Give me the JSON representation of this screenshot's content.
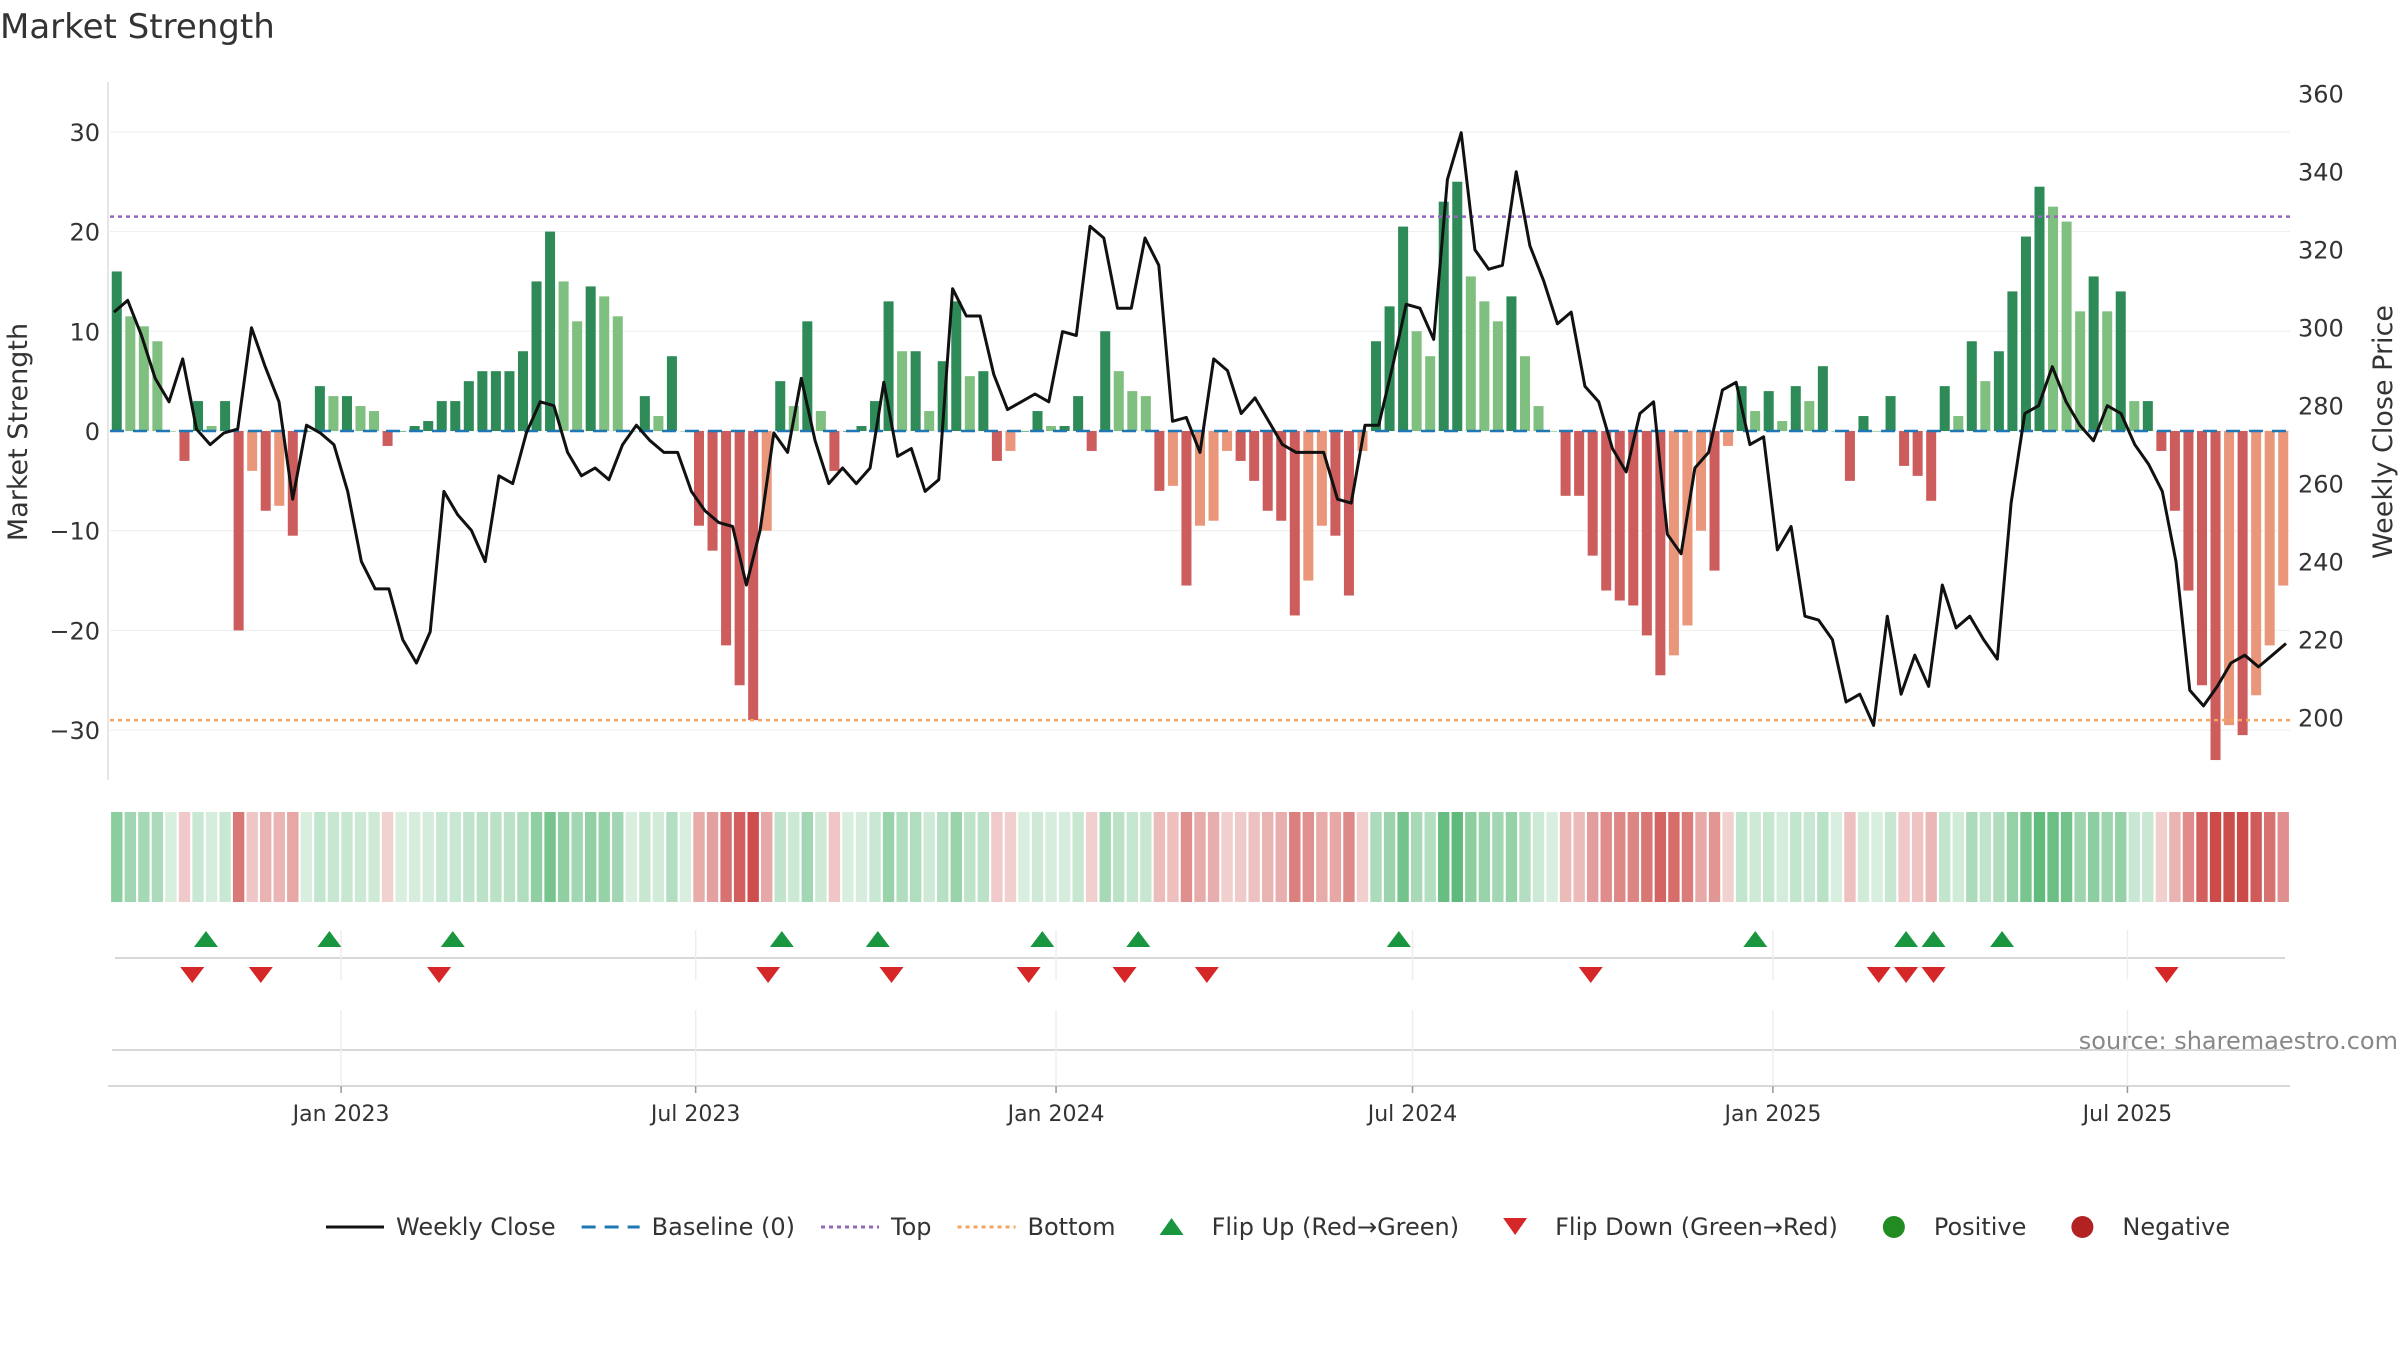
{
  "chart_data": {
    "type": "bar",
    "title": "Market Strength",
    "source": "source: sharemaestro.com",
    "ylabel_left": "Market Strength",
    "ylabel_right": "Weekly Close Price",
    "ylim_left": [
      -35,
      35
    ],
    "ylim_right": [
      184,
      363
    ],
    "yticks_left": [
      30,
      20,
      10,
      0,
      -10,
      -20,
      -30
    ],
    "yticks_right": [
      360,
      340,
      320,
      300,
      280,
      260,
      240,
      220,
      200
    ],
    "top_line": 21.5,
    "bottom_line": -29,
    "start_date": "2022-09-05",
    "end_date": "2025-09-22",
    "x_ticks": [
      {
        "date": "2023-01-01",
        "label": "Jan 2023"
      },
      {
        "date": "2023-07-01",
        "label": "Jul 2023"
      },
      {
        "date": "2024-01-01",
        "label": "Jan 2024"
      },
      {
        "date": "2024-07-01",
        "label": "Jul 2024"
      },
      {
        "date": "2025-01-01",
        "label": "Jan 2025"
      },
      {
        "date": "2025-07-01",
        "label": "Jul 2025"
      }
    ],
    "strength": [
      16,
      11.5,
      10.5,
      9,
      0,
      -3,
      3,
      0.5,
      3,
      -20,
      -4,
      -8,
      -7.5,
      -10.5,
      0,
      4.5,
      3.5,
      3.5,
      2.5,
      2,
      -1.5,
      0,
      0.5,
      1,
      3,
      3,
      5,
      6,
      6,
      6,
      8,
      15,
      20,
      15,
      11,
      14.5,
      13.5,
      11.5,
      0,
      3.5,
      1.5,
      7.5,
      0,
      -9.5,
      -12,
      -21.5,
      -25.5,
      -29,
      -10,
      5,
      2.5,
      11,
      2,
      -4,
      0,
      0.5,
      3,
      13,
      8,
      8,
      2,
      7,
      13,
      5.5,
      6,
      -3,
      -2,
      0,
      2,
      0.5,
      0.5,
      3.5,
      -2,
      10,
      6,
      4,
      3.5,
      -6,
      -5.5,
      -15.5,
      -9.5,
      -9,
      -2,
      -3,
      -5,
      -8,
      -9,
      -18.5,
      -15,
      -9.5,
      -10.5,
      -16.5,
      -2,
      9,
      12.5,
      20.5,
      10,
      7.5,
      23,
      25,
      15.5,
      13,
      11,
      13.5,
      7.5,
      2.5,
      0,
      -6.5,
      -6.5,
      -12.5,
      -16,
      -17,
      -17.5,
      -20.5,
      -24.5,
      -22.5,
      -19.5,
      -10,
      -14,
      -1.5,
      4.5,
      2,
      4,
      1,
      4.5,
      3,
      6.5,
      0,
      -5,
      1.5,
      0,
      3.5,
      -3.5,
      -4.5,
      -7,
      4.5,
      1.5,
      9,
      5,
      8,
      14,
      19.5,
      24.5,
      22.5,
      21,
      12,
      15.5,
      12,
      14,
      3,
      3,
      -2,
      -8,
      -16,
      -25.5,
      -33,
      -29.5,
      -30.5,
      -26.5,
      -21.5,
      -15.5
    ],
    "weekly_close": [
      304,
      307,
      298,
      287,
      281,
      292,
      274,
      270,
      273,
      274,
      300,
      290,
      281,
      256,
      275,
      273,
      270,
      258,
      240,
      233,
      233,
      220,
      214,
      222,
      258,
      252,
      248,
      240,
      262,
      260,
      273,
      281,
      280,
      268,
      262,
      264,
      261,
      270,
      275,
      271,
      268,
      268,
      258,
      253,
      250,
      249,
      234,
      248,
      273,
      268,
      287,
      271,
      260,
      264,
      260,
      264,
      286,
      267,
      269,
      258,
      261,
      310,
      303,
      303,
      288,
      279,
      281,
      283,
      281,
      299,
      298,
      326,
      323,
      305,
      305,
      323,
      316,
      276,
      277,
      268,
      292,
      289,
      278,
      282,
      276,
      270,
      268,
      268,
      268,
      256,
      255,
      275,
      275,
      290,
      306,
      305,
      297,
      338,
      350,
      320,
      315,
      316,
      340,
      321,
      312,
      301,
      304,
      285,
      281,
      269,
      263,
      278,
      281,
      247,
      242,
      264,
      268,
      284,
      286,
      270,
      272,
      243,
      249,
      226,
      225,
      220,
      204,
      206,
      198,
      226,
      206,
      216,
      208,
      234,
      223,
      226,
      220,
      215,
      255,
      278,
      280,
      290,
      281,
      275,
      271,
      280,
      278,
      270,
      265,
      258,
      240,
      207,
      203,
      208,
      214,
      216,
      213,
      216,
      219
    ],
    "flip_up_dates": [
      "2022-10-24",
      "2022-12-26",
      "2023-02-27",
      "2023-08-14",
      "2023-10-02",
      "2023-12-25",
      "2024-02-12",
      "2024-06-24",
      "2024-12-23",
      "2025-03-10",
      "2025-03-24",
      "2025-04-28"
    ],
    "flip_down_dates": [
      "2022-10-17",
      "2022-11-21",
      "2023-02-20",
      "2023-08-07",
      "2023-10-09",
      "2023-12-18",
      "2024-02-05",
      "2024-03-18",
      "2024-09-30",
      "2025-02-24",
      "2025-03-10",
      "2025-03-24",
      "2025-07-21"
    ],
    "legend": [
      {
        "label": "Weekly Close",
        "marker": "line-black"
      },
      {
        "label": "Baseline (0)",
        "marker": "dash-blue"
      },
      {
        "label": "Top",
        "marker": "dot-purple"
      },
      {
        "label": "Bottom",
        "marker": "dot-orange"
      },
      {
        "label": "Flip Up (Red→Green)",
        "marker": "triangle-up-green"
      },
      {
        "label": "Flip Down (Green→Red)",
        "marker": "triangle-down-red"
      },
      {
        "label": "Positive",
        "marker": "circle-green"
      },
      {
        "label": "Negative",
        "marker": "circle-red"
      }
    ],
    "colors": {
      "pos_dark": "#2e8b57",
      "pos_light": "#7fbf7f",
      "neg_dark": "#cd5c5c",
      "neg_light": "#e9967a",
      "close_line": "#111111",
      "baseline": "#1f77b4",
      "top": "#9467bd",
      "bottom": "#f4a460",
      "flip_up": "#1a9641",
      "flip_down": "#d62728",
      "positive": "#228b22",
      "negative": "#b22222"
    }
  }
}
